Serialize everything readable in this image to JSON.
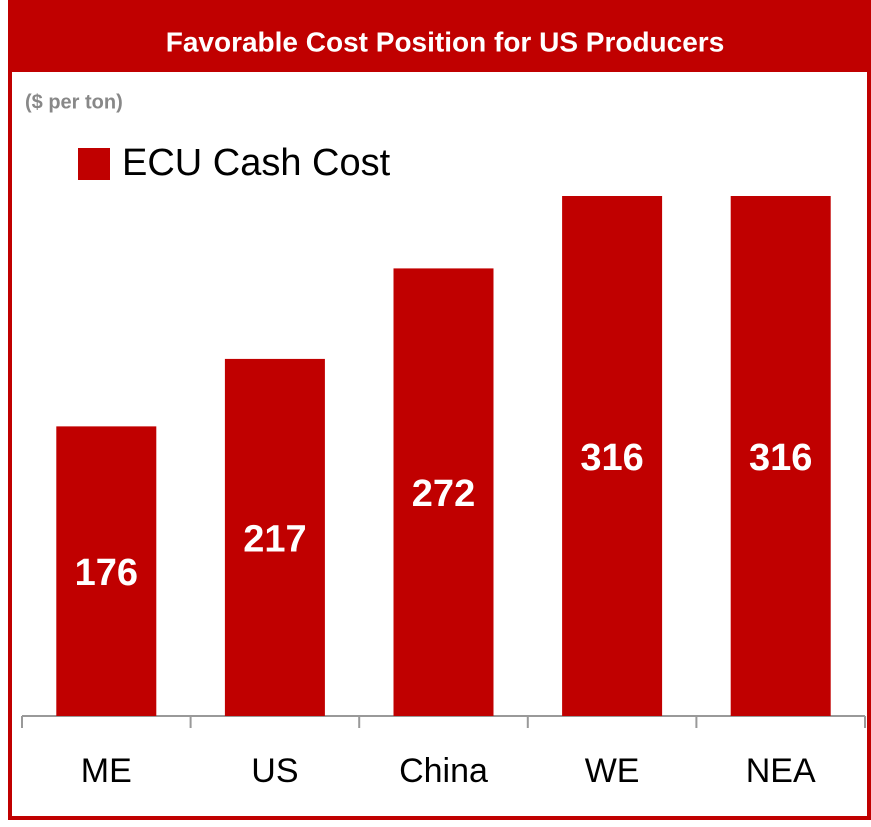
{
  "chart_data": {
    "type": "bar",
    "title": "Favorable Cost Position for US Producers",
    "subtitle": "($ per ton)",
    "categories": [
      "ME",
      "US",
      "China",
      "WE",
      "NEA"
    ],
    "series": [
      {
        "name": "ECU Cash Cost",
        "color": "#c00000",
        "values": [
          176,
          217,
          272,
          316,
          316
        ]
      }
    ]
  }
}
